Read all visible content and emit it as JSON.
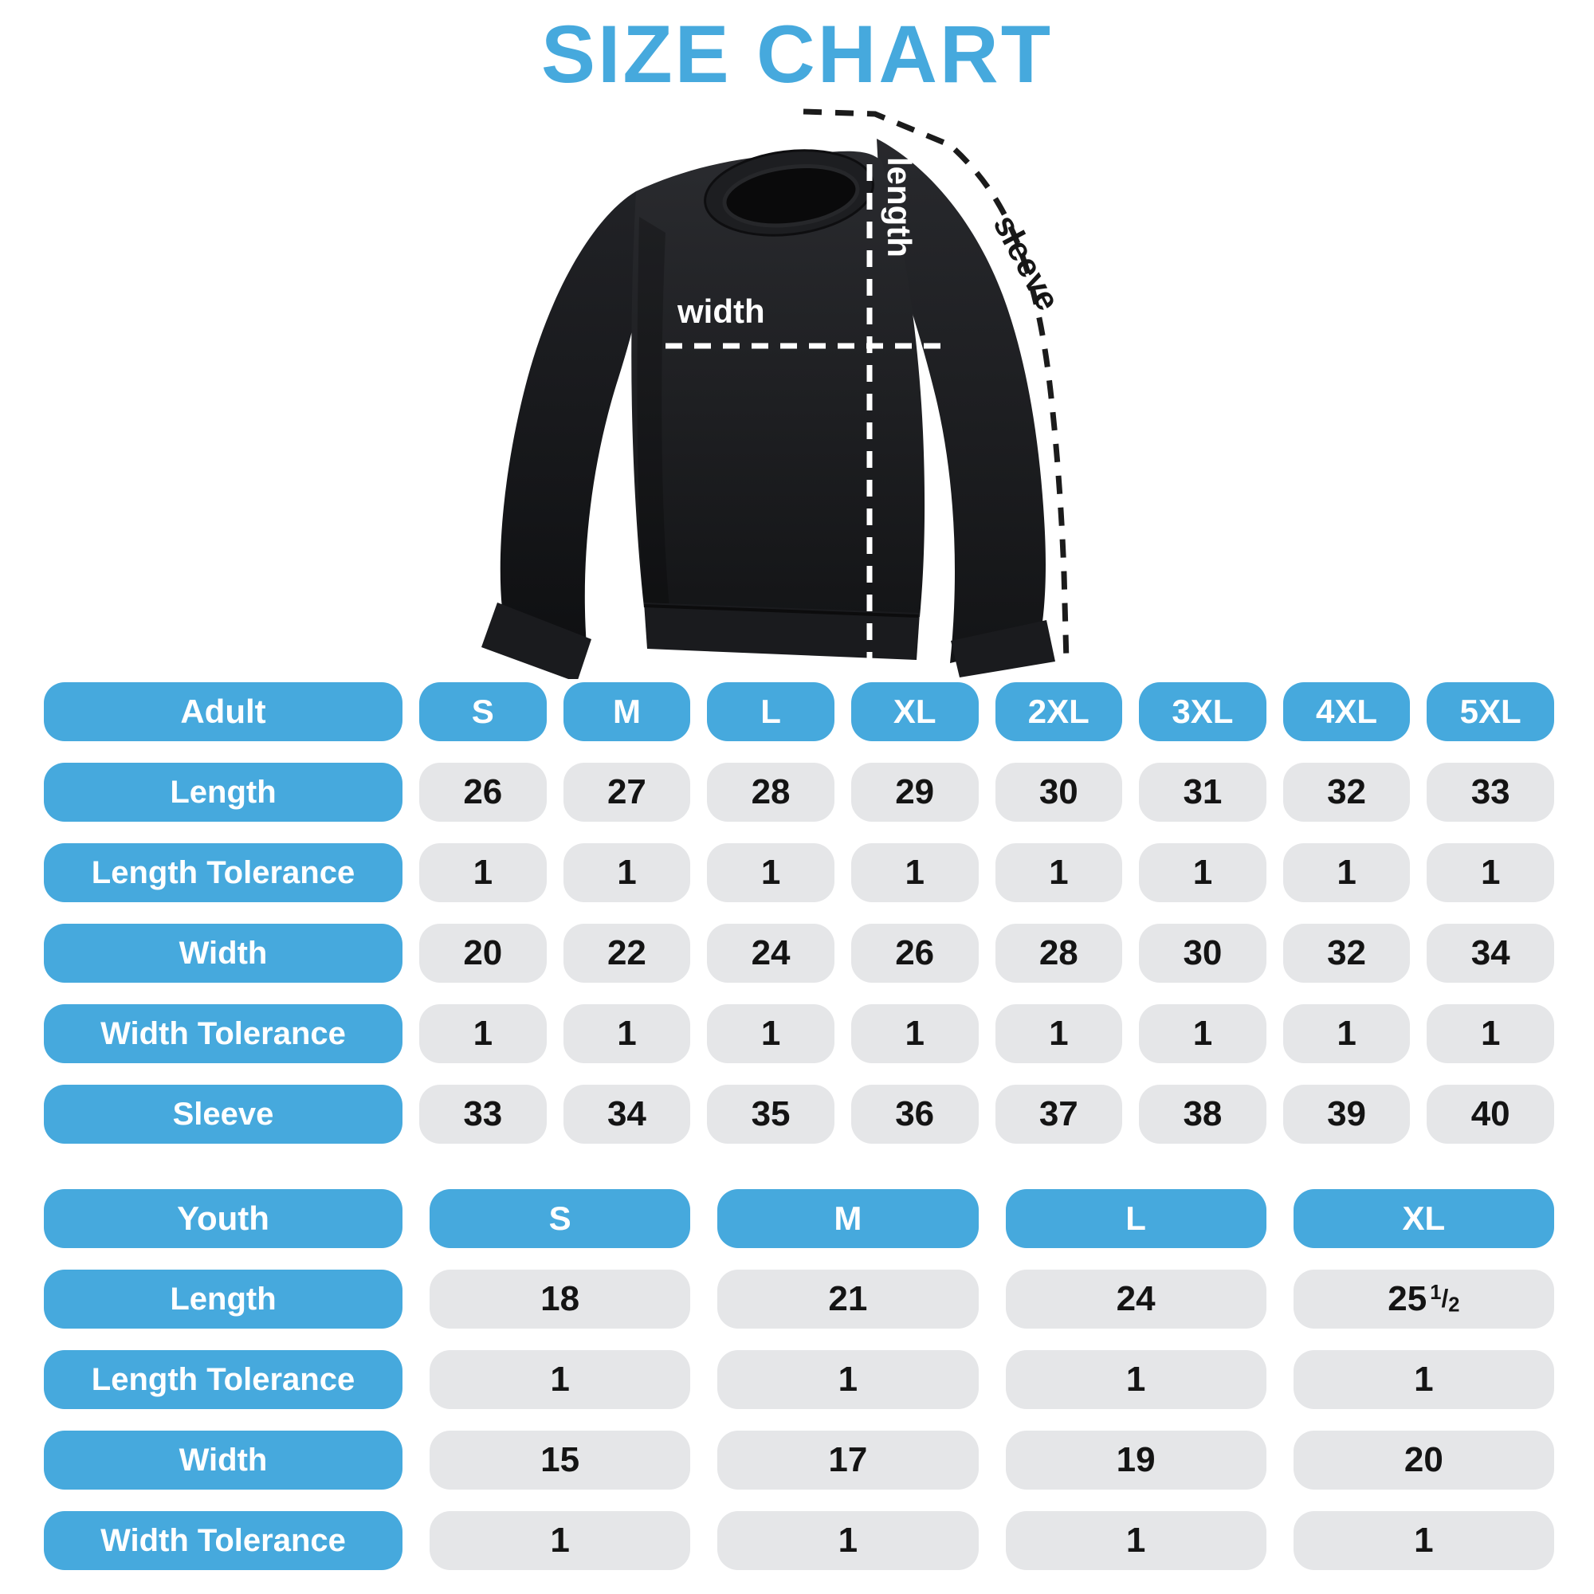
{
  "title": "SIZE CHART",
  "colors": {
    "accent": "#46a9dd",
    "cell_gray": "#e5e6e8",
    "ink": "#141414"
  },
  "figure": {
    "labels": {
      "width": "width",
      "length": "length",
      "sleeve": "sleeve"
    }
  },
  "chart_data": [
    {
      "type": "table",
      "title": "Adult",
      "columns": [
        "Adult",
        "S",
        "M",
        "L",
        "XL",
        "2XL",
        "3XL",
        "4XL",
        "5XL"
      ],
      "rows": [
        [
          "Length",
          26,
          27,
          28,
          29,
          30,
          31,
          32,
          33
        ],
        [
          "Length Tolerance",
          1,
          1,
          1,
          1,
          1,
          1,
          1,
          1
        ],
        [
          "Width",
          20,
          22,
          24,
          26,
          28,
          30,
          32,
          34
        ],
        [
          "Width Tolerance",
          1,
          1,
          1,
          1,
          1,
          1,
          1,
          1
        ],
        [
          "Sleeve",
          33,
          34,
          35,
          36,
          37,
          38,
          39,
          40
        ]
      ]
    },
    {
      "type": "table",
      "title": "Youth",
      "columns": [
        "Youth",
        "S",
        "M",
        "L",
        "XL"
      ],
      "rows": [
        [
          "Length",
          18,
          21,
          24,
          25.5
        ],
        [
          "Length Tolerance",
          1,
          1,
          1,
          1
        ],
        [
          "Width",
          15,
          17,
          19,
          20
        ],
        [
          "Width Tolerance",
          1,
          1,
          1,
          1
        ]
      ]
    }
  ]
}
